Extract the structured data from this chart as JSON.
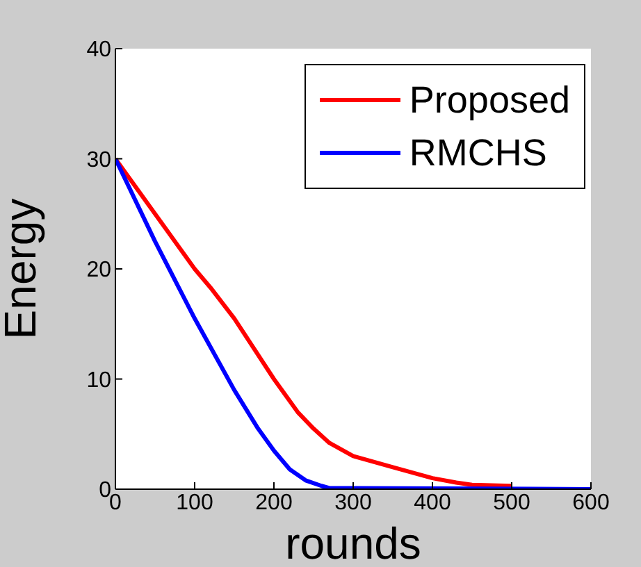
{
  "chart_data": {
    "type": "line",
    "xlabel": "rounds",
    "ylabel": "Energy",
    "xlim": [
      0,
      600
    ],
    "xticks": [
      0,
      100,
      200,
      300,
      400,
      500,
      600
    ],
    "ylim": [
      0,
      40
    ],
    "yticks": [
      0,
      10,
      20,
      30,
      40
    ],
    "grid": false,
    "legend": "top right",
    "marker": "none",
    "line_style": "solid",
    "series": [
      {
        "name": "Proposed",
        "color": "#ff0000",
        "x": [
          0,
          50,
          100,
          120,
          150,
          200,
          230,
          250,
          270,
          300,
          350,
          400,
          430,
          450,
          500
        ],
        "values": [
          30,
          25,
          20,
          18.3,
          15.5,
          10,
          7,
          5.5,
          4.2,
          3,
          2,
          1,
          0.6,
          0.4,
          0.3
        ]
      },
      {
        "name": "RMCHS",
        "color": "#0000ff",
        "x": [
          0,
          50,
          100,
          150,
          180,
          200,
          220,
          240,
          260,
          270,
          300,
          600
        ],
        "values": [
          30,
          22.5,
          15.5,
          9,
          5.5,
          3.5,
          1.8,
          0.8,
          0.3,
          0.1,
          0.1,
          0
        ]
      }
    ]
  }
}
